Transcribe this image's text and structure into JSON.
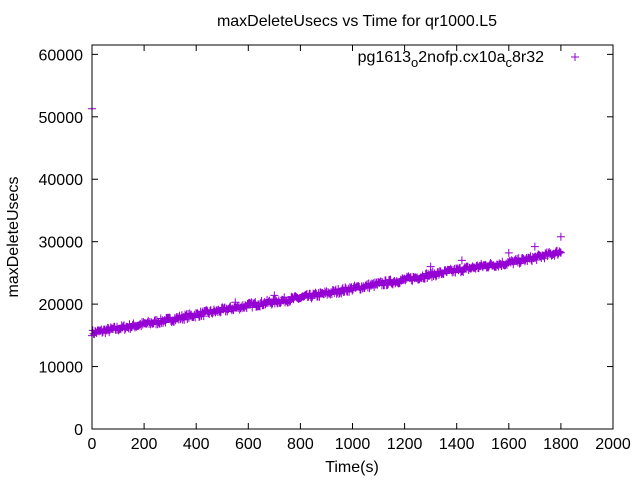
{
  "chart_data": {
    "type": "scatter",
    "title": "maxDeleteUsecs vs Time for qr1000.L5",
    "xlabel": "Time(s)",
    "ylabel": "maxDeleteUsecs",
    "xlim": [
      0,
      2000
    ],
    "ylim": [
      0,
      61500
    ],
    "xticks": [
      0,
      200,
      400,
      600,
      800,
      1000,
      1200,
      1400,
      1600,
      1800,
      2000
    ],
    "yticks": [
      0,
      10000,
      20000,
      30000,
      40000,
      50000,
      60000
    ],
    "legend_position": "top-right",
    "grid": false,
    "series": [
      {
        "name": "pg1613_o2nofp.cx10a_c8r32",
        "color": "#9400d3",
        "trend_x": [
          0,
          100,
          200,
          300,
          400,
          500,
          600,
          700,
          800,
          900,
          1000,
          1100,
          1200,
          1300,
          1400,
          1500,
          1600,
          1700,
          1800
        ],
        "trend_y": [
          15400,
          16100,
          16800,
          17500,
          18300,
          19000,
          19800,
          20400,
          21000,
          21700,
          22500,
          23200,
          23900,
          24700,
          25400,
          26100,
          26600,
          27400,
          28400
        ],
        "outliers": [
          [
            0,
            51300
          ],
          [
            1800,
            30800
          ],
          [
            1700,
            29200
          ],
          [
            1600,
            28200
          ],
          [
            1420,
            27000
          ],
          [
            1300,
            26000
          ],
          [
            700,
            21400
          ],
          [
            550,
            20300
          ]
        ]
      }
    ]
  }
}
